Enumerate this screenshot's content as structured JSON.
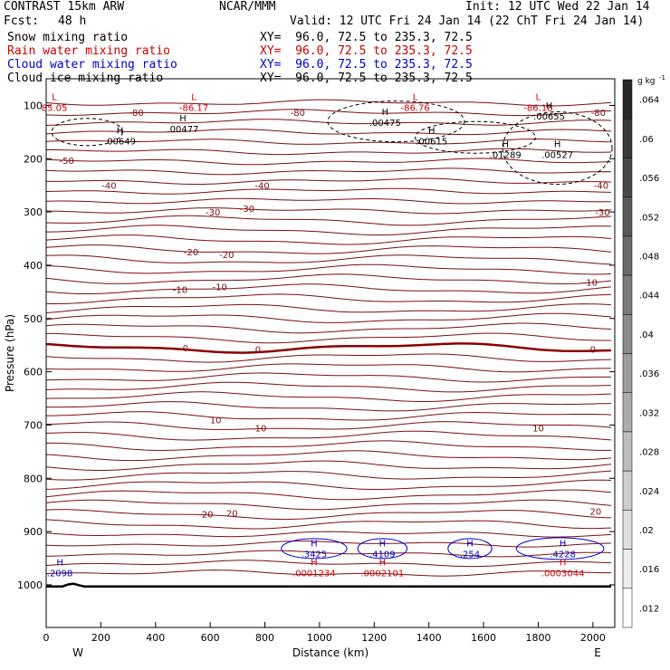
{
  "header": {
    "model": "CONTRAST 15km ARW",
    "center": "NCAR/MMM",
    "init": "Init: 12 UTC Wed 22 Jan 14",
    "fcst_label": "Fcst:",
    "fcst_value": "48 h",
    "valid": "Valid: 12 UTC Fri 24 Jan 14 (22 ChT Fri 24 Jan 14)"
  },
  "fields": [
    {
      "name": "Snow mixing ratio",
      "xy": "XY=  96.0, 72.5 to 235.3, 72.5",
      "color": "#000000"
    },
    {
      "name": "Rain water mixing ratio",
      "xy": "XY=  96.0, 72.5 to 235.3, 72.5",
      "color": "#cc0000"
    },
    {
      "name": "Cloud water mixing ratio",
      "xy": "XY=  96.0, 72.5 to 235.3, 72.5",
      "color": "#0000cc"
    },
    {
      "name": "Cloud ice mixing ratio",
      "xy": "XY=  96.0, 72.5 to 235.3, 72.5",
      "color": "#000000"
    }
  ],
  "chart_data": {
    "type": "contour",
    "xlabel": "Distance (km)",
    "ylabel": "Pressure (hPa)",
    "xlim": [
      0,
      2080
    ],
    "ylim": [
      1080,
      50
    ],
    "x_ticks": [
      0,
      200,
      400,
      600,
      800,
      1000,
      1200,
      1400,
      1600,
      1800,
      2000
    ],
    "y_ticks": [
      100,
      200,
      300,
      400,
      500,
      600,
      700,
      800,
      900,
      1000
    ],
    "x_end_labels": {
      "left": "W",
      "right": "E"
    },
    "temperature_contour_labels": [
      "-80",
      "-50",
      "-40",
      "-30",
      "-20",
      "-10",
      "0",
      "10",
      "20"
    ],
    "temperature_labels_shown": [
      {
        "x": 330,
        "p": 113,
        "text": "-80"
      },
      {
        "x": 920,
        "p": 113,
        "text": "-80"
      },
      {
        "x": 2020,
        "p": 113,
        "text": "-80"
      },
      {
        "x": 75,
        "p": 203,
        "text": "-50"
      },
      {
        "x": 230,
        "p": 250,
        "text": "-40"
      },
      {
        "x": 790,
        "p": 250,
        "text": "-40"
      },
      {
        "x": 2030,
        "p": 250,
        "text": "-40"
      },
      {
        "x": 610,
        "p": 300,
        "text": "-30"
      },
      {
        "x": 735,
        "p": 293,
        "text": "-30"
      },
      {
        "x": 2035,
        "p": 300,
        "text": "-30"
      },
      {
        "x": 530,
        "p": 375,
        "text": "-20"
      },
      {
        "x": 660,
        "p": 380,
        "text": "-20"
      },
      {
        "x": 490,
        "p": 445,
        "text": "-10"
      },
      {
        "x": 635,
        "p": 440,
        "text": "-10"
      },
      {
        "x": 1990,
        "p": 432,
        "text": "-10"
      },
      {
        "x": 510,
        "p": 555,
        "text": "0"
      },
      {
        "x": 775,
        "p": 557,
        "text": "0"
      },
      {
        "x": 2000,
        "p": 557,
        "text": "0"
      },
      {
        "x": 620,
        "p": 690,
        "text": "10"
      },
      {
        "x": 785,
        "p": 705,
        "text": "10"
      },
      {
        "x": 1800,
        "p": 705,
        "text": "10"
      },
      {
        "x": 590,
        "p": 867,
        "text": "20"
      },
      {
        "x": 680,
        "p": 865,
        "text": "20"
      },
      {
        "x": 2010,
        "p": 862,
        "text": "20"
      }
    ],
    "extrema": [
      {
        "kind": "L",
        "value": "85.05",
        "x": 30,
        "p": 97,
        "color": "#cc0000"
      },
      {
        "kind": "L",
        "value": "-86.17",
        "x": 540,
        "p": 97,
        "color": "#cc0000"
      },
      {
        "kind": "L",
        "value": "-86.76",
        "x": 1350,
        "p": 97,
        "color": "#cc0000"
      },
      {
        "kind": "L",
        "value": "-86.18",
        "x": 1800,
        "p": 97,
        "color": "#cc0000"
      },
      {
        "kind": "H",
        "value": ".00649",
        "x": 270,
        "p": 160,
        "color": "#000000"
      },
      {
        "kind": "H",
        "value": ".00477",
        "x": 500,
        "p": 137,
        "color": "#000000"
      },
      {
        "kind": "H",
        "value": ".00475",
        "x": 1240,
        "p": 125,
        "color": "#000000"
      },
      {
        "kind": "H",
        "value": ".00615",
        "x": 1410,
        "p": 160,
        "color": "#000000"
      },
      {
        "kind": "H",
        "value": ".00655",
        "x": 1840,
        "p": 113,
        "color": "#000000"
      },
      {
        "kind": "H",
        "value": ".01289",
        "x": 1680,
        "p": 185,
        "color": "#000000"
      },
      {
        "kind": "H",
        "value": ".00527",
        "x": 1870,
        "p": 185,
        "color": "#000000"
      },
      {
        "kind": "H",
        "value": ".2098",
        "x": 50,
        "p": 970,
        "color": "#0000cc"
      },
      {
        "kind": "H",
        "value": ".3425",
        "x": 980,
        "p": 935,
        "color": "#0000cc"
      },
      {
        "kind": "H",
        "value": ".4109",
        "x": 1230,
        "p": 935,
        "color": "#0000cc"
      },
      {
        "kind": "H",
        "value": ".254",
        "x": 1550,
        "p": 935,
        "color": "#0000cc"
      },
      {
        "kind": "H",
        "value": ".4228",
        "x": 1890,
        "p": 935,
        "color": "#0000cc"
      },
      {
        "kind": "H",
        "value": ".0001234",
        "x": 980,
        "p": 970,
        "color": "#cc0000"
      },
      {
        "kind": "H",
        "value": ".0002101",
        "x": 1230,
        "p": 970,
        "color": "#cc0000"
      },
      {
        "kind": "H",
        "value": ".0003044",
        "x": 1890,
        "p": 970,
        "color": "#cc0000"
      }
    ],
    "colorbar": {
      "unit": "g kg",
      "unit_sup": "-1",
      "ticks": [
        ".064",
        ".06",
        ".056",
        ".052",
        ".048",
        ".044",
        ".04",
        ".036",
        ".032",
        ".028",
        ".024",
        ".02",
        ".016",
        ".012"
      ]
    }
  }
}
